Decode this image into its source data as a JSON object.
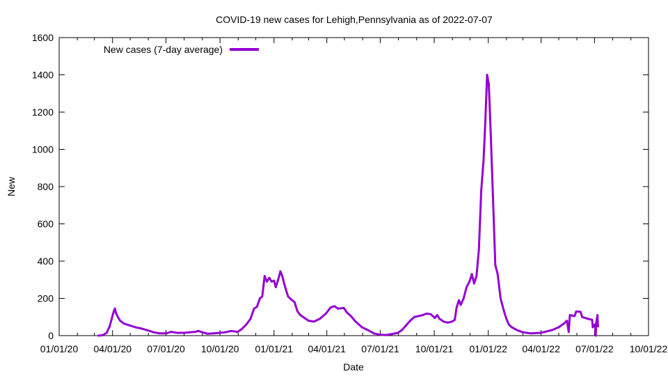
{
  "chart_data": {
    "type": "line",
    "title": "COVID-19 new cases for Lehigh,Pennsylvania as of 2022-07-07",
    "xlabel": "Date",
    "ylabel": "New",
    "xlim": [
      "2020-01-01",
      "2022-10-01"
    ],
    "ylim": [
      0,
      1600
    ],
    "x_ticks": [
      "01/01/20",
      "04/01/20",
      "07/01/20",
      "10/01/20",
      "01/01/21",
      "04/01/21",
      "07/01/21",
      "10/01/21",
      "01/01/22",
      "04/01/22",
      "07/01/22",
      "10/01/22"
    ],
    "y_ticks": [
      0,
      200,
      400,
      600,
      800,
      1000,
      1200,
      1400,
      1600
    ],
    "grid": false,
    "legend": "top-left",
    "series": [
      {
        "name": "New cases (7-day average)",
        "color": "#9400d3",
        "points": [
          [
            "2020-03-08",
            0
          ],
          [
            "2020-03-15",
            2
          ],
          [
            "2020-03-22",
            15
          ],
          [
            "2020-03-27",
            50
          ],
          [
            "2020-03-31",
            95
          ],
          [
            "2020-04-03",
            130
          ],
          [
            "2020-04-05",
            145
          ],
          [
            "2020-04-07",
            120
          ],
          [
            "2020-04-10",
            100
          ],
          [
            "2020-04-14",
            80
          ],
          [
            "2020-04-20",
            65
          ],
          [
            "2020-04-30",
            55
          ],
          [
            "2020-05-10",
            45
          ],
          [
            "2020-05-20",
            38
          ],
          [
            "2020-05-31",
            28
          ],
          [
            "2020-06-10",
            18
          ],
          [
            "2020-06-20",
            12
          ],
          [
            "2020-07-01",
            12
          ],
          [
            "2020-07-10",
            20
          ],
          [
            "2020-07-20",
            15
          ],
          [
            "2020-08-01",
            15
          ],
          [
            "2020-08-10",
            18
          ],
          [
            "2020-08-20",
            20
          ],
          [
            "2020-08-25",
            25
          ],
          [
            "2020-09-01",
            18
          ],
          [
            "2020-09-10",
            10
          ],
          [
            "2020-09-20",
            12
          ],
          [
            "2020-10-01",
            15
          ],
          [
            "2020-10-10",
            18
          ],
          [
            "2020-10-20",
            25
          ],
          [
            "2020-10-31",
            20
          ],
          [
            "2020-11-07",
            35
          ],
          [
            "2020-11-15",
            60
          ],
          [
            "2020-11-22",
            90
          ],
          [
            "2020-11-28",
            145
          ],
          [
            "2020-12-03",
            155
          ],
          [
            "2020-12-08",
            200
          ],
          [
            "2020-12-12",
            210
          ],
          [
            "2020-12-16",
            320
          ],
          [
            "2020-12-20",
            290
          ],
          [
            "2020-12-24",
            310
          ],
          [
            "2020-12-28",
            290
          ],
          [
            "2021-01-01",
            295
          ],
          [
            "2021-01-04",
            260
          ],
          [
            "2021-01-08",
            300
          ],
          [
            "2021-01-12",
            345
          ],
          [
            "2021-01-15",
            320
          ],
          [
            "2021-01-20",
            260
          ],
          [
            "2021-01-25",
            210
          ],
          [
            "2021-01-30",
            195
          ],
          [
            "2021-02-05",
            180
          ],
          [
            "2021-02-10",
            130
          ],
          [
            "2021-02-15",
            110
          ],
          [
            "2021-02-22",
            95
          ],
          [
            "2021-03-01",
            80
          ],
          [
            "2021-03-10",
            75
          ],
          [
            "2021-03-20",
            90
          ],
          [
            "2021-03-31",
            120
          ],
          [
            "2021-04-07",
            150
          ],
          [
            "2021-04-14",
            158
          ],
          [
            "2021-04-20",
            145
          ],
          [
            "2021-04-30",
            148
          ],
          [
            "2021-05-05",
            125
          ],
          [
            "2021-05-12",
            105
          ],
          [
            "2021-05-20",
            75
          ],
          [
            "2021-05-31",
            45
          ],
          [
            "2021-06-10",
            30
          ],
          [
            "2021-06-20",
            12
          ],
          [
            "2021-07-01",
            5
          ],
          [
            "2021-07-10",
            3
          ],
          [
            "2021-07-20",
            8
          ],
          [
            "2021-07-31",
            15
          ],
          [
            "2021-08-07",
            30
          ],
          [
            "2021-08-14",
            55
          ],
          [
            "2021-08-21",
            80
          ],
          [
            "2021-08-28",
            100
          ],
          [
            "2021-09-04",
            105
          ],
          [
            "2021-09-11",
            110
          ],
          [
            "2021-09-18",
            118
          ],
          [
            "2021-09-25",
            115
          ],
          [
            "2021-10-02",
            95
          ],
          [
            "2021-10-06",
            110
          ],
          [
            "2021-10-10",
            90
          ],
          [
            "2021-10-17",
            75
          ],
          [
            "2021-10-24",
            70
          ],
          [
            "2021-10-31",
            75
          ],
          [
            "2021-11-05",
            85
          ],
          [
            "2021-11-08",
            150
          ],
          [
            "2021-11-12",
            190
          ],
          [
            "2021-11-15",
            165
          ],
          [
            "2021-11-20",
            200
          ],
          [
            "2021-11-25",
            260
          ],
          [
            "2021-11-30",
            290
          ],
          [
            "2021-12-04",
            330
          ],
          [
            "2021-12-08",
            280
          ],
          [
            "2021-12-12",
            320
          ],
          [
            "2021-12-16",
            460
          ],
          [
            "2021-12-20",
            780
          ],
          [
            "2021-12-24",
            940
          ],
          [
            "2021-12-27",
            1150
          ],
          [
            "2021-12-30",
            1400
          ],
          [
            "2022-01-02",
            1350
          ],
          [
            "2022-01-05",
            1100
          ],
          [
            "2022-01-09",
            750
          ],
          [
            "2022-01-13",
            380
          ],
          [
            "2022-01-17",
            330
          ],
          [
            "2022-01-22",
            200
          ],
          [
            "2022-01-27",
            140
          ],
          [
            "2022-02-01",
            90
          ],
          [
            "2022-02-05",
            60
          ],
          [
            "2022-02-10",
            45
          ],
          [
            "2022-02-20",
            28
          ],
          [
            "2022-03-01",
            18
          ],
          [
            "2022-03-15",
            12
          ],
          [
            "2022-03-31",
            15
          ],
          [
            "2022-04-10",
            22
          ],
          [
            "2022-04-20",
            30
          ],
          [
            "2022-05-01",
            45
          ],
          [
            "2022-05-10",
            65
          ],
          [
            "2022-05-15",
            80
          ],
          [
            "2022-05-18",
            20
          ],
          [
            "2022-05-20",
            110
          ],
          [
            "2022-05-28",
            105
          ],
          [
            "2022-05-31",
            130
          ],
          [
            "2022-06-07",
            128
          ],
          [
            "2022-06-10",
            100
          ],
          [
            "2022-06-20",
            90
          ],
          [
            "2022-06-27",
            85
          ],
          [
            "2022-06-28",
            45
          ],
          [
            "2022-07-02",
            60
          ],
          [
            "2022-07-03",
            0
          ],
          [
            "2022-07-04",
            70
          ],
          [
            "2022-07-06",
            110
          ],
          [
            "2022-07-07",
            50
          ]
        ]
      }
    ]
  }
}
